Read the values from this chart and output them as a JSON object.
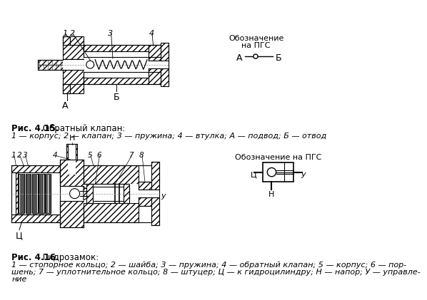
{
  "bg_color": "#ffffff",
  "fig_title1": "Рис. 4.15.",
  "fig_title1b": " Обратный клапан:",
  "fig_caption1": "1 — корпус; 2 — клапан; 3 — пружина; 4 — втулка; А — подвод; Б — отвод",
  "fig_title2": "Рис. 4.16.",
  "fig_title2b": " Гидрозамок:",
  "cap2_line1": "1 — стопорное кольцо; 2 — шайба; 3 — пружина; 4 — обратный клапан; 5 — корпус; 6 — пор-",
  "cap2_line2": "шень; 7 — уплотнительное кольцо; 8 — штуцер; Ц — к гидроцилиндру; Н — напор; У — управле-",
  "cap2_line3": "ние"
}
